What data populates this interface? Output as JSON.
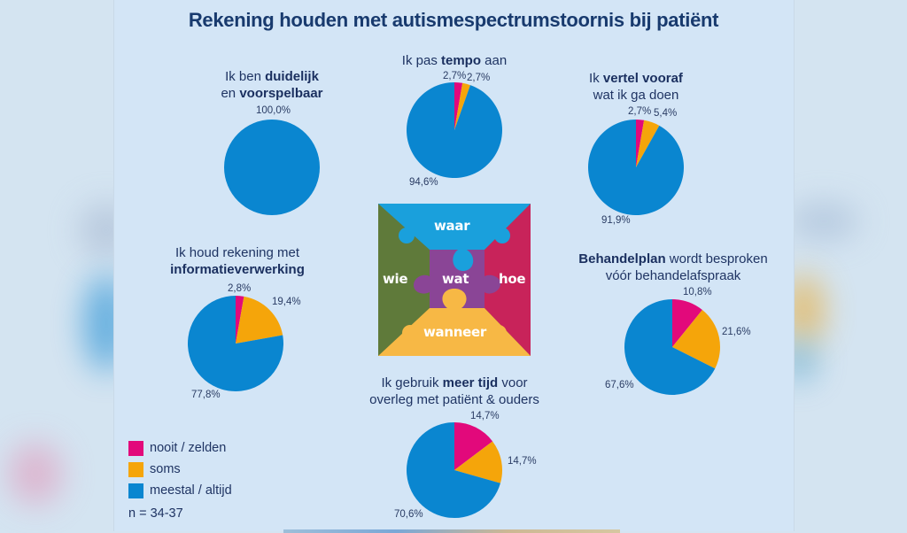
{
  "title": "Rekening houden met autismespectrumstoornis bij patiënt",
  "colors": {
    "nooit_zelden": "#e2097b",
    "soms": "#f5a50a",
    "meestal_altijd": "#0a86d0",
    "title": "#183a6e",
    "background": "#d3e5f6"
  },
  "legend": {
    "items": [
      {
        "key": "nooit_zelden",
        "label": "nooit / zelden",
        "color": "#e2097b"
      },
      {
        "key": "soms",
        "label": "soms",
        "color": "#f5a50a"
      },
      {
        "key": "meestal_altijd",
        "label": "meestal / altijd",
        "color": "#0a86d0"
      }
    ],
    "n_label": "n = 34-37"
  },
  "puzzle": {
    "top": "waar",
    "left": "wie",
    "center": "wat",
    "right": "hoe",
    "bottom": "wanneer",
    "colors": {
      "top": "#1aa0dc",
      "left": "#5f7a3a",
      "center": "#8a4596",
      "right": "#c8235a",
      "bottom": "#f7b845"
    }
  },
  "pies": [
    {
      "id": "duidelijk",
      "question_parts": [
        [
          "Ik ben ",
          false
        ],
        [
          "duidelijk",
          true
        ],
        [
          "\n",
          false
        ],
        [
          "en ",
          false
        ],
        [
          "voorspelbaar",
          true
        ]
      ],
      "labels": {
        "nooit_zelden": "",
        "soms": "",
        "meestal_altijd": "100,0%"
      }
    },
    {
      "id": "tempo",
      "question_parts": [
        [
          "Ik pas ",
          false
        ],
        [
          "tempo",
          true
        ],
        [
          " aan",
          false
        ]
      ],
      "labels": {
        "nooit_zelden": "2,7%",
        "soms": "2,7%",
        "meestal_altijd": "94,6%"
      }
    },
    {
      "id": "vertel_vooraf",
      "question_parts": [
        [
          "Ik ",
          false
        ],
        [
          "vertel vooraf",
          true
        ],
        [
          "\n",
          false
        ],
        [
          "wat ik ga doen",
          false
        ]
      ],
      "labels": {
        "nooit_zelden": "2,7%",
        "soms": "5,4%",
        "meestal_altijd": "91,9%"
      }
    },
    {
      "id": "informatieverwerking",
      "question_parts": [
        [
          "Ik houd rekening met",
          false
        ],
        [
          "\n",
          false
        ],
        [
          "informatieverwerking",
          true
        ]
      ],
      "labels": {
        "nooit_zelden": "2,8%",
        "soms": "19,4%",
        "meestal_altijd": "77,8%"
      }
    },
    {
      "id": "behandelplan",
      "question_parts": [
        [
          "Behandelplan",
          true
        ],
        [
          " wordt besproken",
          false
        ],
        [
          "\n",
          false
        ],
        [
          "vóór behandelafspraak",
          false
        ]
      ],
      "labels": {
        "nooit_zelden": "10,8%",
        "soms": "21,6%",
        "meestal_altijd": "67,6%"
      }
    },
    {
      "id": "meer_tijd",
      "question_parts": [
        [
          "Ik gebruik ",
          false
        ],
        [
          "meer tijd",
          true
        ],
        [
          " voor",
          false
        ],
        [
          "\n",
          false
        ],
        [
          "overleg met patiënt & ouders",
          false
        ]
      ],
      "labels": {
        "nooit_zelden": "14,7%",
        "soms": "14,7%",
        "meestal_altijd": "70,6%"
      }
    }
  ],
  "chart_data": [
    {
      "type": "pie",
      "title": "Ik ben duidelijk en voorspelbaar",
      "categories": [
        "nooit / zelden",
        "soms",
        "meestal / altijd"
      ],
      "values": [
        0,
        0,
        100.0
      ]
    },
    {
      "type": "pie",
      "title": "Ik pas tempo aan",
      "categories": [
        "nooit / zelden",
        "soms",
        "meestal / altijd"
      ],
      "values": [
        2.7,
        2.7,
        94.6
      ]
    },
    {
      "type": "pie",
      "title": "Ik vertel vooraf wat ik ga doen",
      "categories": [
        "nooit / zelden",
        "soms",
        "meestal / altijd"
      ],
      "values": [
        2.7,
        5.4,
        91.9
      ]
    },
    {
      "type": "pie",
      "title": "Ik houd rekening met informatieverwerking",
      "categories": [
        "nooit / zelden",
        "soms",
        "meestal / altijd"
      ],
      "values": [
        2.8,
        19.4,
        77.8
      ]
    },
    {
      "type": "pie",
      "title": "Behandelplan wordt besproken vóór behandelafspraak",
      "categories": [
        "nooit / zelden",
        "soms",
        "meestal / altijd"
      ],
      "values": [
        10.8,
        21.6,
        67.6
      ]
    },
    {
      "type": "pie",
      "title": "Ik gebruik meer tijd voor overleg met patiënt & ouders",
      "categories": [
        "nooit / zelden",
        "soms",
        "meestal / altijd"
      ],
      "values": [
        14.7,
        14.7,
        70.6
      ]
    }
  ]
}
